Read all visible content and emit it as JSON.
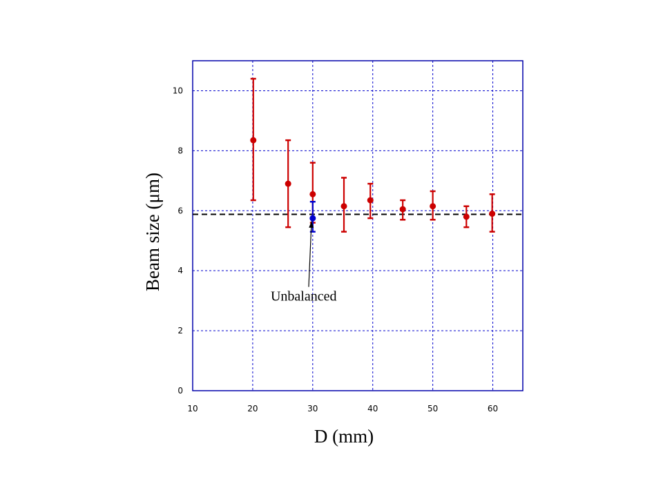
{
  "chart_data": {
    "type": "scatter",
    "title": "",
    "xlabel": "D (mm)",
    "ylabel": "Beam size (μm)",
    "xlim": [
      10,
      65
    ],
    "ylim": [
      0,
      11
    ],
    "x_ticks": [
      "10",
      "20",
      "30",
      "40",
      "50",
      "60"
    ],
    "y_ticks": [
      "0",
      "2",
      "4",
      "6",
      "8",
      "10"
    ],
    "grid": true,
    "colors": {
      "measured": "#cc0000",
      "unbalanced": "#0000cc",
      "frame": "#0000aa",
      "grid": "#0000cc",
      "reference_line": "#000000"
    },
    "series": [
      {
        "color": "#cc0000",
        "points": [
          {
            "x": 20.1,
            "y": 8.35,
            "ylow": 6.35,
            "yhigh": 10.4
          },
          {
            "x": 25.9,
            "y": 6.9,
            "ylow": 5.45,
            "yhigh": 8.35
          },
          {
            "x": 30.0,
            "y": 6.55,
            "ylow": 5.6,
            "yhigh": 7.6
          },
          {
            "x": 35.2,
            "y": 6.15,
            "ylow": 5.3,
            "yhigh": 7.1
          },
          {
            "x": 39.6,
            "y": 6.35,
            "ylow": 5.75,
            "yhigh": 6.9
          },
          {
            "x": 45.0,
            "y": 6.05,
            "ylow": 5.7,
            "yhigh": 6.35
          },
          {
            "x": 50.0,
            "y": 6.15,
            "ylow": 5.7,
            "yhigh": 6.65
          },
          {
            "x": 55.6,
            "y": 5.8,
            "ylow": 5.45,
            "yhigh": 6.15
          },
          {
            "x": 59.9,
            "y": 5.9,
            "ylow": 5.3,
            "yhigh": 6.55
          }
        ]
      },
      {
        "color": "#0000cc",
        "points": [
          {
            "x": 30.0,
            "y": 5.75,
            "ylow": 5.3,
            "yhigh": 6.3
          }
        ]
      }
    ],
    "reference_line": {
      "y": 5.88,
      "style": "dashed"
    },
    "annotations": [
      {
        "text": "Unbalanced",
        "x": 23,
        "y": 3.0,
        "arrow_to": {
          "x": 29.8,
          "y": 5.65
        }
      }
    ]
  }
}
